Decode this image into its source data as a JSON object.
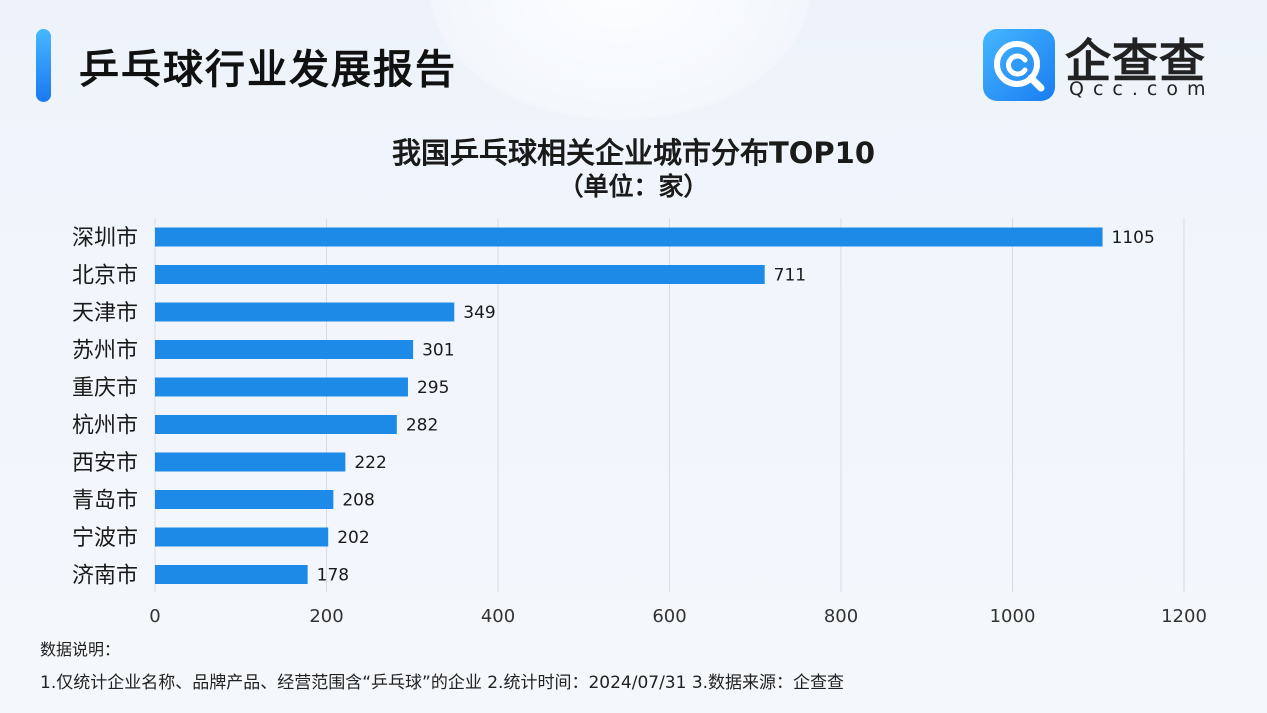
{
  "header": {
    "report_title": "乒乓球行业发展报告",
    "logo_name": "企查查",
    "logo_url": "Qcc.com"
  },
  "footer": {
    "note_heading": "数据说明：",
    "note_text": "1.仅统计企业名称、品牌产品、经营范围含“乒乓球”的企业   2.统计时间：2024/07/31    3.数据来源：企查查"
  },
  "colors": {
    "bar": "#1c8ae6",
    "accent": "#2a8ff7",
    "grid": "#d9dde3"
  },
  "chart_data": {
    "type": "bar",
    "orientation": "horizontal",
    "title": "我国乒乓球相关企业城市分布TOP10",
    "subtitle": "（单位：家）",
    "categories": [
      "深圳市",
      "北京市",
      "天津市",
      "苏州市",
      "重庆市",
      "杭州市",
      "西安市",
      "青岛市",
      "宁波市",
      "济南市"
    ],
    "values": [
      1105,
      711,
      349,
      301,
      295,
      282,
      222,
      208,
      202,
      178
    ],
    "xlim": [
      0,
      1200
    ],
    "xticks": [
      "0",
      "200",
      "400",
      "600",
      "800",
      "1000",
      "1200"
    ],
    "grid": true,
    "data_labels": true
  }
}
